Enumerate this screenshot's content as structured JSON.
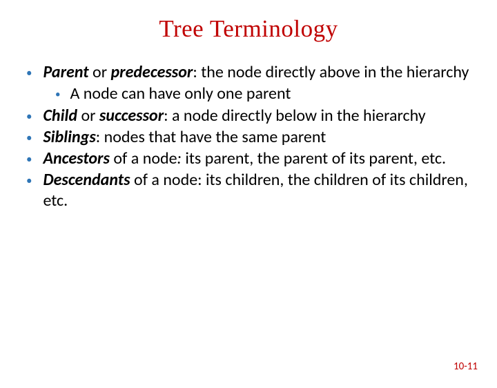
{
  "title": {
    "text": "Tree Terminology",
    "color": "#c00000"
  },
  "bullet_color": "#2e75b6",
  "text_color": "#000000",
  "page_number_color": "#c00000",
  "items": [
    {
      "term": "Parent",
      "conn": " or ",
      "term2": "predecessor",
      "rest": ": the node directly above in the hierarchy",
      "sub": {
        "text": "A node can have only one parent"
      }
    },
    {
      "term": "Child",
      "conn": " or ",
      "term2": "successor",
      "rest": ": a node directly below in the hierarchy"
    },
    {
      "term": "Siblings",
      "rest": ": nodes that have the same parent"
    },
    {
      "term": "Ancestors",
      "conn_plain": " of a node",
      "rest_italic_colon": ":",
      "rest": "  its parent, the parent of its parent, etc."
    },
    {
      "term": "Descendants",
      "conn_plain": " of a node: its children, the children of its children, etc."
    }
  ],
  "page_number": "10-11"
}
